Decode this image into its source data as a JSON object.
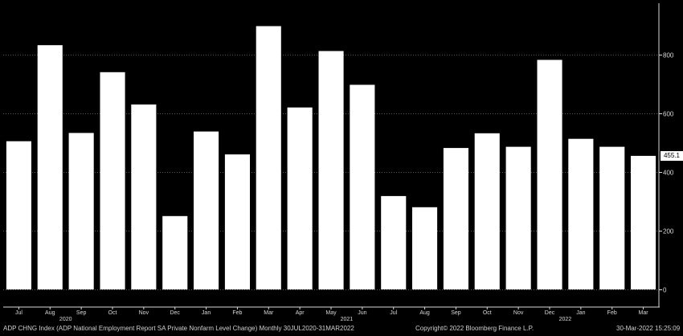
{
  "chart_data": {
    "type": "bar",
    "categories": [
      "Jul",
      "Aug",
      "Sep",
      "Oct",
      "Nov",
      "Dec",
      "Jan",
      "Feb",
      "Mar",
      "Apr",
      "May",
      "Jun",
      "Jul",
      "Aug",
      "Sep",
      "Oct",
      "Nov",
      "Dec",
      "Jan",
      "Feb",
      "Mar"
    ],
    "year_labels": [
      {
        "label": "2020",
        "after_index": 2
      },
      {
        "label": "2021",
        "after_index": 11
      },
      {
        "label": "2022",
        "after_index": 18
      }
    ],
    "values": [
      505,
      832,
      533,
      740,
      630,
      250,
      538,
      460,
      897,
      620,
      812,
      697,
      318,
      280,
      482,
      532,
      486,
      782,
      513,
      486,
      455.1
    ],
    "ylim": [
      -60,
      975
    ],
    "yticks": [
      0,
      200,
      400,
      600,
      800
    ],
    "last_value_label": "455.1",
    "grid": true,
    "bar_color": "#ffffff",
    "background": "#000000",
    "grid_color": "#5a5a5a"
  },
  "footer": {
    "left": "ADP CHNG Index (ADP National Employment Report SA Private Nonfarm Level Change)  Monthly 30JUL2020-31MAR2022",
    "center": "Copyright© 2022 Bloomberg Finance L.P.",
    "right": "30-Mar-2022 15:25:09"
  }
}
